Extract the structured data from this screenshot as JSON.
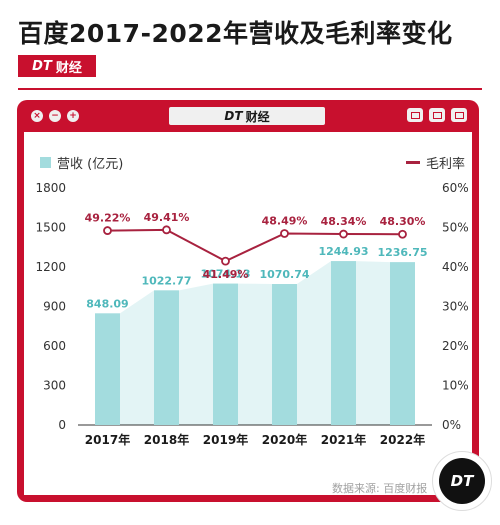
{
  "header": {
    "title": "百度2017-2022年营收及毛利率变化",
    "brand_mark": "DT",
    "brand_name": "财经"
  },
  "window": {
    "tab_mark": "DT",
    "tab_name": "财经",
    "dot_icons": [
      "close-icon",
      "minus-icon",
      "plus-icon"
    ]
  },
  "legend": {
    "bars_label": "营收 (亿元)",
    "line_label": "毛利率"
  },
  "source": "数据来源: 百度财报",
  "corner_logo": "DT",
  "colors": {
    "accent": "#c8102e",
    "bar": "#a3dcde",
    "area": "#e3f4f5",
    "line": "#a8223f",
    "bar_label": "#4fb8bb"
  },
  "chart_data": {
    "type": "bar",
    "categories": [
      "2017年",
      "2018年",
      "2019年",
      "2020年",
      "2021年",
      "2022年"
    ],
    "series": [
      {
        "name": "营收 (亿元)",
        "type": "bar",
        "axis": "left",
        "values": [
          848.09,
          1022.77,
          1074.13,
          1070.74,
          1244.93,
          1236.75
        ],
        "labels": [
          "848.09",
          "1022.77",
          "1074.13",
          "1070.74",
          "1244.93",
          "1236.75"
        ]
      },
      {
        "name": "毛利率",
        "type": "line",
        "axis": "right",
        "values": [
          49.22,
          49.41,
          41.49,
          48.49,
          48.34,
          48.3
        ],
        "labels": [
          "49.22%",
          "49.41%",
          "41.49%",
          "48.49%",
          "48.34%",
          "48.30%"
        ]
      }
    ],
    "y_left": {
      "lim": [
        0,
        1800
      ],
      "ticks": [
        "0",
        "300",
        "600",
        "900",
        "1200",
        "1500",
        "1800"
      ]
    },
    "y_right": {
      "lim": [
        0,
        60
      ],
      "ticks": [
        "0%",
        "10%",
        "20%",
        "30%",
        "40%",
        "50%",
        "60%"
      ]
    },
    "grid": false,
    "legend_position": "top"
  }
}
